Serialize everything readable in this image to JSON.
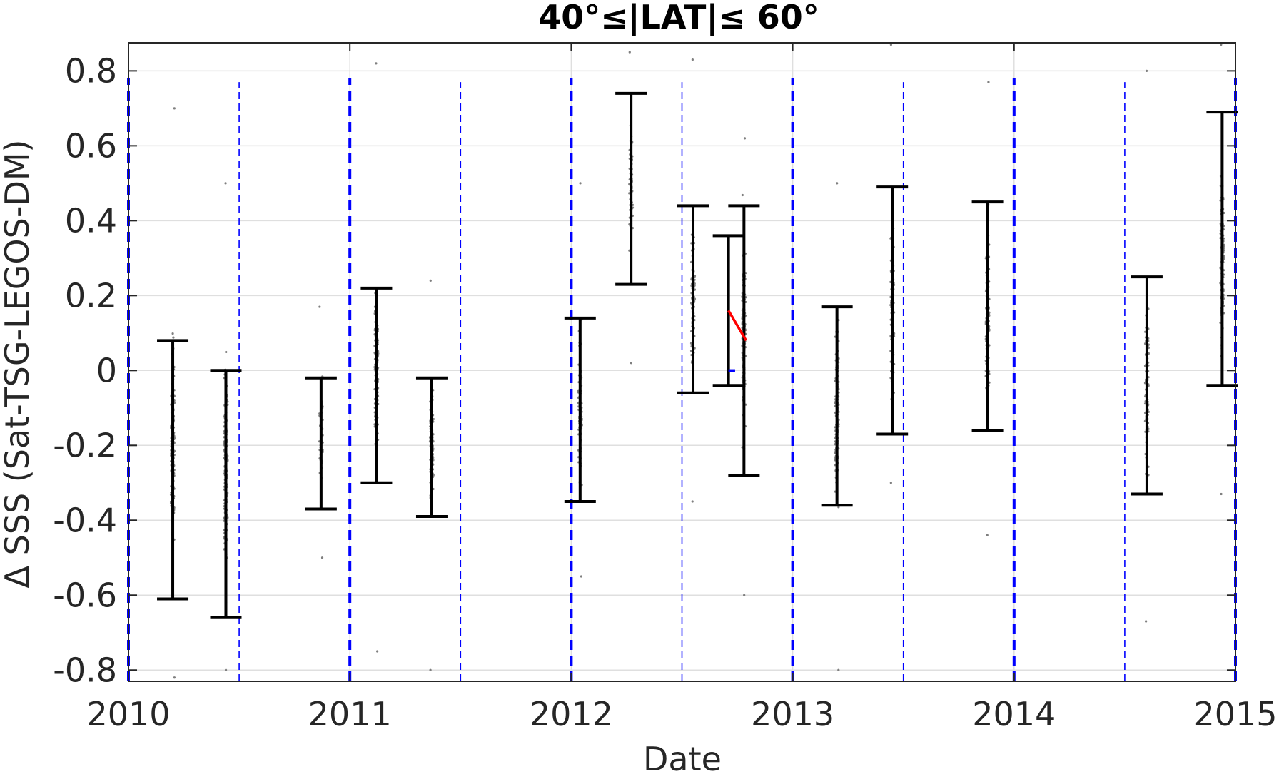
{
  "chart_data": {
    "type": "scatter",
    "title": "40°≤|LAT|≤ 60°",
    "xlabel": "Date",
    "ylabel": "Δ SSS (Sat-TSG-LEGOS-DM)",
    "xlim": [
      2010.0,
      2015.0
    ],
    "ylim": [
      -0.83,
      0.875
    ],
    "x_ticks": [
      2010,
      2011,
      2012,
      2013,
      2014,
      2015
    ],
    "x_tick_labels": [
      "2010",
      "2011",
      "2012",
      "2013",
      "2014",
      "2015"
    ],
    "y_ticks": [
      0.8,
      0.6,
      0.4,
      0.2,
      0,
      -0.2,
      -0.4,
      -0.6,
      -0.8
    ],
    "y_tick_labels": [
      "0.8",
      "0.6",
      "0.4",
      "0.2",
      "0",
      "-0.2",
      "-0.4",
      "-0.6",
      "-0.8"
    ],
    "grid": true,
    "year_lines": [
      2010.0,
      2011.0,
      2012.0,
      2013.0,
      2014.0,
      2015.0
    ],
    "half_year_lines": [
      2010.5,
      2011.5,
      2012.5,
      2013.5,
      2014.5
    ],
    "error_bars": [
      {
        "x": 2010.2,
        "low": -0.61,
        "high": 0.08
      },
      {
        "x": 2010.44,
        "low": -0.66,
        "high": 0.0
      },
      {
        "x": 2010.87,
        "low": -0.37,
        "high": -0.02
      },
      {
        "x": 2011.12,
        "low": -0.3,
        "high": 0.22
      },
      {
        "x": 2011.37,
        "low": -0.39,
        "high": -0.02
      },
      {
        "x": 2012.04,
        "low": -0.35,
        "high": 0.14
      },
      {
        "x": 2012.27,
        "low": 0.23,
        "high": 0.74
      },
      {
        "x": 2012.55,
        "low": -0.06,
        "high": 0.44
      },
      {
        "x": 2012.71,
        "low": -0.04,
        "high": 0.36
      },
      {
        "x": 2012.78,
        "low": -0.28,
        "high": 0.44
      },
      {
        "x": 2013.2,
        "low": -0.36,
        "high": 0.17
      },
      {
        "x": 2013.45,
        "low": -0.17,
        "high": 0.49
      },
      {
        "x": 2013.88,
        "low": -0.16,
        "high": 0.45
      },
      {
        "x": 2014.6,
        "low": -0.33,
        "high": 0.25
      },
      {
        "x": 2014.94,
        "low": -0.04,
        "high": 0.69
      }
    ],
    "point_clusters": [
      {
        "x": 2010.2,
        "center": -0.2,
        "spread": 0.28,
        "min": -0.82,
        "max": 0.7,
        "n": 150
      },
      {
        "x": 2010.44,
        "center": -0.25,
        "spread": 0.3,
        "min": -0.8,
        "max": 0.5,
        "n": 140
      },
      {
        "x": 2010.87,
        "center": -0.18,
        "spread": 0.15,
        "min": -0.5,
        "max": 0.17,
        "n": 40
      },
      {
        "x": 2011.12,
        "center": -0.02,
        "spread": 0.22,
        "min": -0.75,
        "max": 0.82,
        "n": 110
      },
      {
        "x": 2011.37,
        "center": -0.2,
        "spread": 0.15,
        "min": -0.8,
        "max": 0.24,
        "n": 110
      },
      {
        "x": 2012.04,
        "center": -0.1,
        "spread": 0.2,
        "min": -0.55,
        "max": 0.5,
        "n": 100
      },
      {
        "x": 2012.27,
        "center": 0.48,
        "spread": 0.2,
        "min": 0.02,
        "max": 0.85,
        "n": 60
      },
      {
        "x": 2012.55,
        "center": 0.2,
        "spread": 0.2,
        "min": -0.35,
        "max": 0.83,
        "n": 100
      },
      {
        "x": 2012.78,
        "center": 0.08,
        "spread": 0.26,
        "min": -0.6,
        "max": 0.62,
        "n": 130
      },
      {
        "x": 2013.2,
        "center": -0.1,
        "spread": 0.22,
        "min": -0.8,
        "max": 0.5,
        "n": 140
      },
      {
        "x": 2013.45,
        "center": 0.15,
        "spread": 0.26,
        "min": -0.3,
        "max": 0.87,
        "n": 90
      },
      {
        "x": 2013.88,
        "center": 0.15,
        "spread": 0.25,
        "min": -0.44,
        "max": 0.77,
        "n": 90
      },
      {
        "x": 2014.6,
        "center": -0.05,
        "spread": 0.24,
        "min": -0.67,
        "max": 0.8,
        "n": 100
      },
      {
        "x": 2014.94,
        "center": 0.3,
        "spread": 0.3,
        "min": -0.33,
        "max": 0.87,
        "n": 110
      }
    ],
    "trend_line": {
      "x": [
        2012.71,
        2012.79
      ],
      "y": [
        0.16,
        0.08
      ],
      "color": "#ff0000"
    },
    "blue_marker": {
      "x": [
        2012.71,
        2012.74
      ],
      "y": [
        0.0,
        0.0
      ],
      "color": "#0000ff"
    },
    "colors": {
      "points": "#7f7f7f",
      "error_bars": "#000000",
      "guide_lines": "#0000ff",
      "grid": "#dfdfdf",
      "axes": "#262626"
    }
  }
}
